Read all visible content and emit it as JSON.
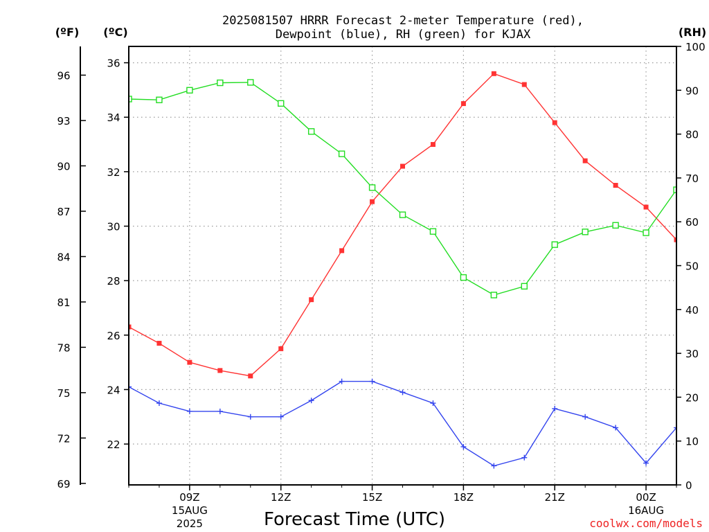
{
  "chart_data": {
    "type": "line",
    "title": [
      "2025081507 HRRR Forecast 2-meter Temperature (red),",
      "Dewpoint (blue), RH (green) for KJAX"
    ],
    "xlabel": "Forecast Time (UTC)",
    "units": {
      "fahrenheit": "(ºF)",
      "celsius": "(ºC)",
      "rh": "(RH)"
    },
    "credit": "coolwx.com/models",
    "x_hours": [
      "07Z",
      "08Z",
      "09Z",
      "10Z",
      "11Z",
      "12Z",
      "13Z",
      "14Z",
      "15Z",
      "16Z",
      "17Z",
      "18Z",
      "19Z",
      "20Z",
      "21Z",
      "22Z",
      "23Z",
      "00Z",
      "01Z"
    ],
    "x_ticks": [
      {
        "label": "09Z",
        "sub": [
          "15AUG",
          "2025"
        ]
      },
      {
        "label": "12Z",
        "sub": []
      },
      {
        "label": "15Z",
        "sub": []
      },
      {
        "label": "18Z",
        "sub": []
      },
      {
        "label": "21Z",
        "sub": []
      },
      {
        "label": "00Z",
        "sub": [
          "16AUG"
        ]
      }
    ],
    "axes": {
      "celsius": {
        "ylim": [
          20.5,
          36.6
        ],
        "ticks": [
          "22",
          "24",
          "26",
          "28",
          "30",
          "32",
          "34",
          "36"
        ]
      },
      "fahrenheit": {
        "ylim": [
          68.9,
          97.9
        ],
        "ticks": [
          "69",
          "72",
          "75",
          "78",
          "81",
          "84",
          "87",
          "90",
          "93",
          "96"
        ]
      },
      "rh": {
        "ylim": [
          0,
          100
        ],
        "ticks": [
          "0",
          "10",
          "20",
          "30",
          "40",
          "50",
          "60",
          "70",
          "80",
          "90",
          "100"
        ]
      }
    },
    "grid": true,
    "series": [
      {
        "name": "Temperature",
        "units": "C",
        "color": "#ff3333",
        "marker": "filled-square",
        "values": [
          26.3,
          25.7,
          25.0,
          24.7,
          24.5,
          25.5,
          27.3,
          29.1,
          30.9,
          32.2,
          33.0,
          34.5,
          35.6,
          35.2,
          33.8,
          32.4,
          31.5,
          30.7,
          29.5
        ]
      },
      {
        "name": "Dewpoint",
        "units": "C",
        "color": "#3344ee",
        "marker": "plus",
        "values": [
          24.1,
          23.5,
          23.2,
          23.2,
          23.0,
          23.0,
          23.6,
          24.3,
          24.3,
          23.9,
          23.5,
          21.9,
          21.2,
          21.5,
          23.3,
          23.0,
          22.6,
          21.3,
          22.6
        ]
      },
      {
        "name": "RH",
        "units": "%",
        "color": "#22dd22",
        "marker": "open-square",
        "values": [
          88.0,
          87.8,
          90.0,
          91.7,
          91.8,
          87.0,
          80.6,
          75.5,
          67.8,
          61.6,
          57.8,
          47.3,
          43.3,
          45.3,
          54.8,
          57.7,
          59.2,
          57.5,
          67.3
        ]
      }
    ]
  }
}
